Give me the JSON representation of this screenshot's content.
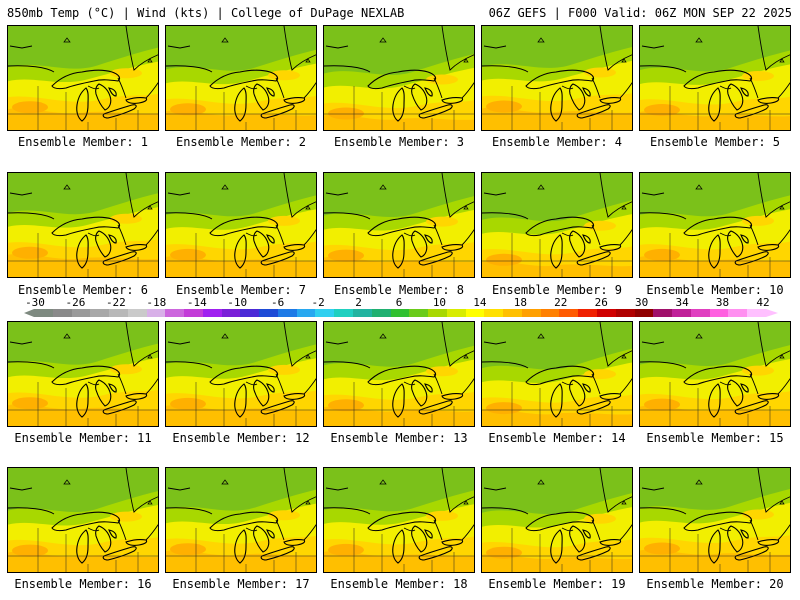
{
  "header": {
    "left": "850mb Temp (°C) | Wind (kts) | College of DuPage NEXLAB",
    "right": "06Z GEFS | F000 Valid: 06Z MON SEP 22 2025"
  },
  "colorbar": {
    "ticks": [
      "-30",
      "-26",
      "-22",
      "-18",
      "-14",
      "-10",
      "-6",
      "-2",
      "2",
      "6",
      "10",
      "14",
      "18",
      "22",
      "26",
      "30",
      "34",
      "38",
      "42"
    ],
    "colors": [
      "#7e8a80",
      "#8a8a8a",
      "#9a9a9a",
      "#a8a8a8",
      "#b8b8b8",
      "#cacaca",
      "#d8b0e8",
      "#cc66dd",
      "#c33cd8",
      "#a020f0",
      "#7a1fd8",
      "#4b2ad6",
      "#1e4bd6",
      "#1e7ae6",
      "#28a8f0",
      "#30d0f0",
      "#20d0c0",
      "#22b4a0",
      "#20b070",
      "#30c030",
      "#6acb1a",
      "#a8d800",
      "#d8ec00",
      "#ffff00",
      "#ffe000",
      "#ffc000",
      "#ffa000",
      "#ff8000",
      "#ff5a00",
      "#f02000",
      "#d00000",
      "#b00000",
      "#900000",
      "#a0106a",
      "#c02098",
      "#e040c0",
      "#ff60e0",
      "#ff90f0",
      "#ffc0ff"
    ]
  },
  "members": [
    {
      "label": "Ensemble Member: 1",
      "warmth": 1.0
    },
    {
      "label": "Ensemble Member: 2",
      "warmth": 0.85
    },
    {
      "label": "Ensemble Member: 3",
      "warmth": 0.55
    },
    {
      "label": "Ensemble Member: 4",
      "warmth": 1.05
    },
    {
      "label": "Ensemble Member: 5",
      "warmth": 0.8
    },
    {
      "label": "Ensemble Member: 6",
      "warmth": 1.1
    },
    {
      "label": "Ensemble Member: 7",
      "warmth": 0.95
    },
    {
      "label": "Ensemble Member: 8",
      "warmth": 0.9
    },
    {
      "label": "Ensemble Member: 9",
      "warmth": 0.6
    },
    {
      "label": "Ensemble Member: 10",
      "warmth": 0.95
    },
    {
      "label": "Ensemble Member: 11",
      "warmth": 1.0
    },
    {
      "label": "Ensemble Member: 12",
      "warmth": 0.95
    },
    {
      "label": "Ensemble Member: 13",
      "warmth": 0.85
    },
    {
      "label": "Ensemble Member: 14",
      "warmth": 0.65
    },
    {
      "label": "Ensemble Member: 15",
      "warmth": 0.9
    },
    {
      "label": "Ensemble Member: 16",
      "warmth": 0.9
    },
    {
      "label": "Ensemble Member: 17",
      "warmth": 1.0
    },
    {
      "label": "Ensemble Member: 18",
      "warmth": 0.95
    },
    {
      "label": "Ensemble Member: 19",
      "warmth": 0.75
    },
    {
      "label": "Ensemble Member: 20",
      "warmth": 1.05
    }
  ]
}
